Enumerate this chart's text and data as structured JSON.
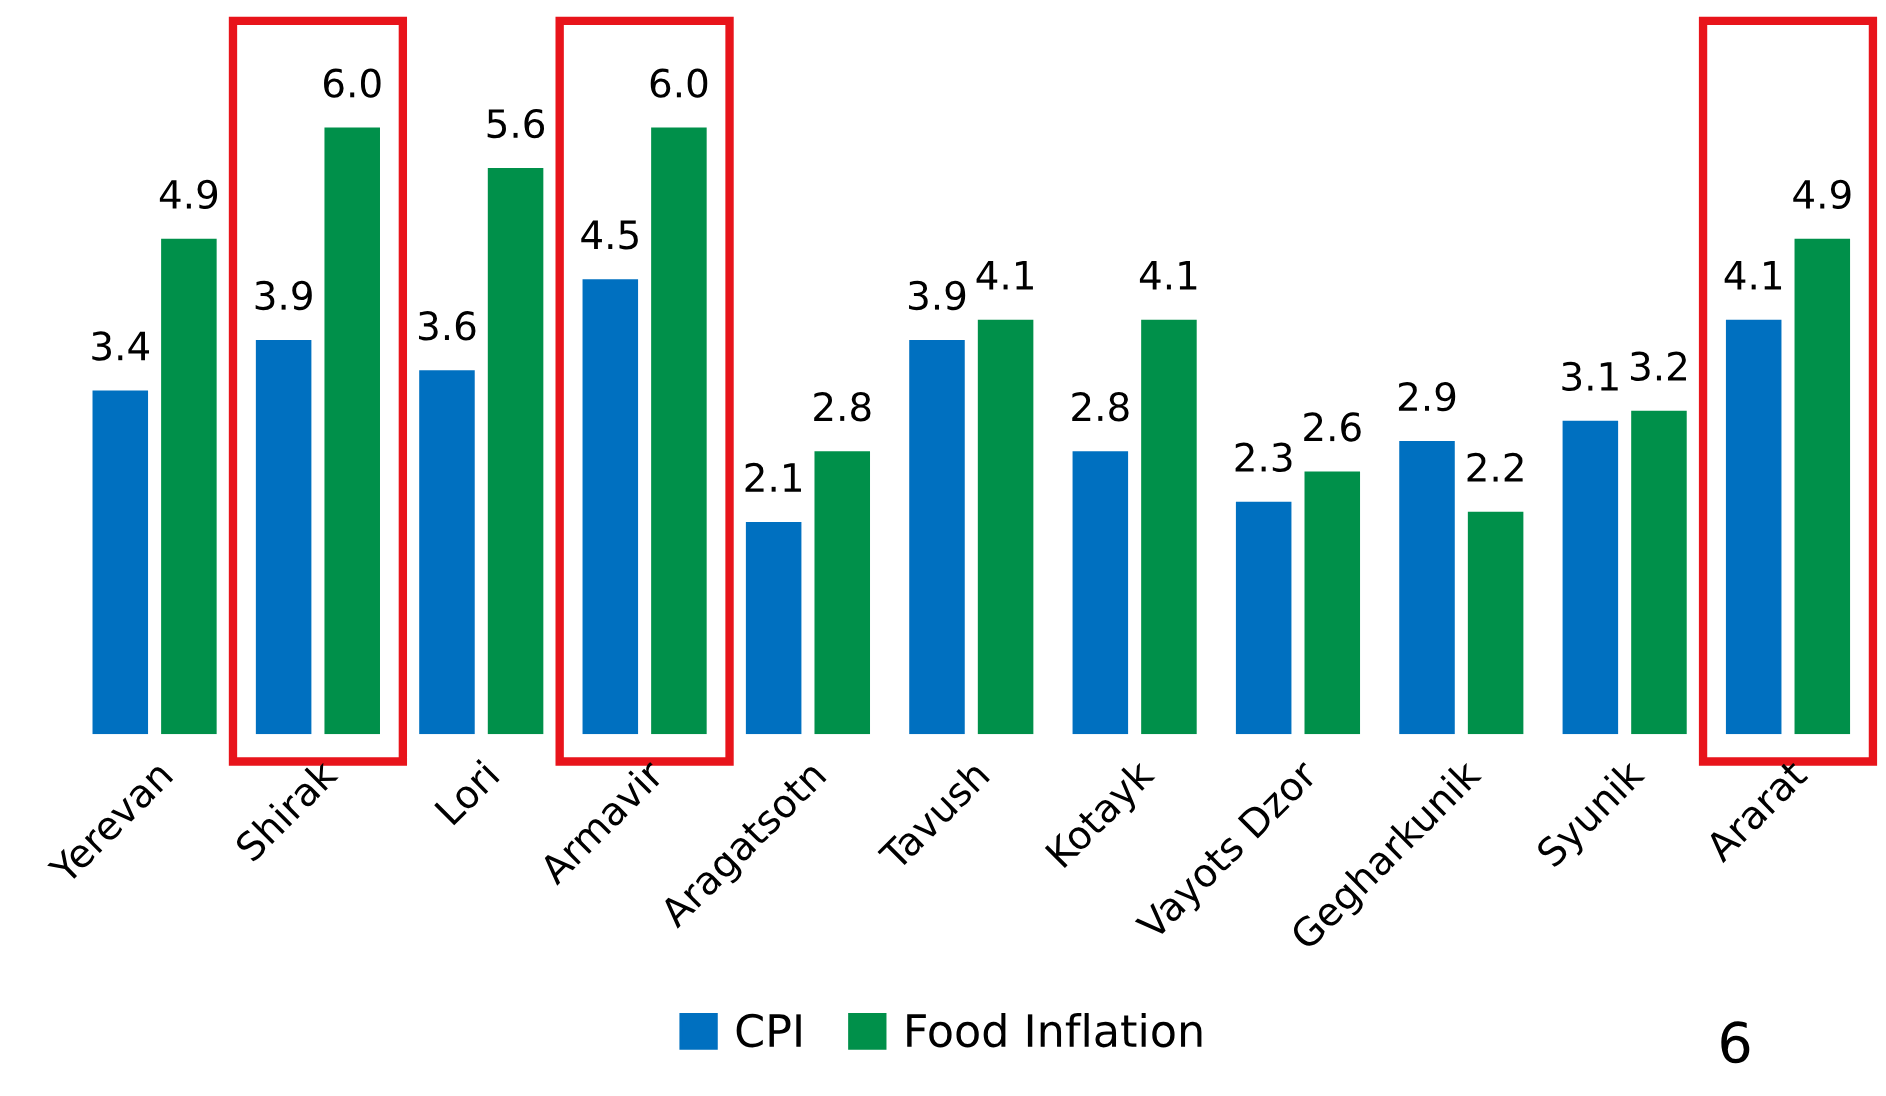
{
  "chart_data": {
    "type": "bar",
    "categories": [
      "Yerevan",
      "Shirak",
      "Lori",
      "Armavir",
      "Aragatsotn",
      "Tavush",
      "Kotayk",
      "Vayots Dzor",
      "Gegharkunik",
      "Syunik",
      "Ararat"
    ],
    "series": [
      {
        "name": "CPI",
        "color": "#0070c0",
        "values": [
          3.4,
          3.9,
          3.6,
          4.5,
          2.1,
          3.9,
          2.8,
          2.3,
          2.9,
          3.1,
          4.1
        ],
        "value_labels": [
          "3.4",
          "3.9",
          "3.6",
          "4.5",
          "2.1",
          "3.9",
          "2.8",
          "2.3",
          "2.9",
          "3.1",
          "4.1"
        ]
      },
      {
        "name": "Food Inflation",
        "color": "#00904a",
        "values": [
          4.9,
          6.0,
          5.6,
          6.0,
          2.8,
          4.1,
          4.1,
          2.6,
          2.2,
          3.2,
          4.9
        ],
        "value_labels": [
          "4.9",
          "6.0",
          "5.6",
          "6.0",
          "2.8",
          "4.1",
          "4.1",
          "2.6",
          "2.2",
          "3.2",
          "4.9"
        ]
      }
    ],
    "legend": "bottom",
    "grid": false,
    "annotations": [
      "6"
    ]
  }
}
